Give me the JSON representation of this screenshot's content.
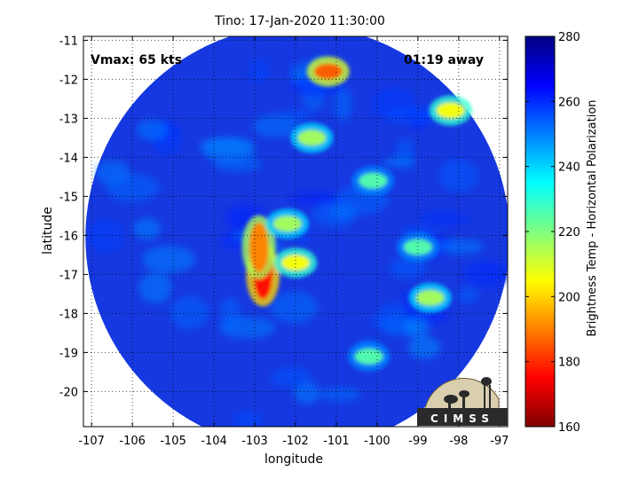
{
  "chart_data": {
    "type": "heatmap",
    "title": "Tino: 17-Jan-2020 11:30:00",
    "xlabel": "longitude",
    "ylabel": "latitude",
    "xlim": [
      -107.2,
      -96.8
    ],
    "ylim": [
      -20.9,
      -10.9
    ],
    "xticks": [
      -107,
      -106,
      -105,
      -104,
      -103,
      -102,
      -101,
      -100,
      -99,
      -98,
      -97
    ],
    "yticks": [
      -11,
      -12,
      -13,
      -14,
      -15,
      -16,
      -17,
      -18,
      -19,
      -20
    ],
    "grid": "dotted",
    "annotations": {
      "vmax": "Vmax: 65 kts",
      "time_away": "01:19 away"
    },
    "colorbar": {
      "label": "Brightness Temp - Horizontal Polarization",
      "range": [
        160,
        280
      ],
      "ticks": [
        160,
        180,
        200,
        220,
        240,
        260,
        280
      ],
      "colormap": "jet"
    },
    "swath": {
      "center_lon": -101.95,
      "center_lat": -16.05,
      "radius_deg": 5.2
    },
    "features": [
      {
        "label": "eyewall_west",
        "lon": -102.8,
        "lat": -17.0,
        "tb": 175
      },
      {
        "label": "eyewall_northwest",
        "lon": -102.9,
        "lat": -16.3,
        "tb": 190
      },
      {
        "label": "inner_band_north",
        "lon": -102.2,
        "lat": -15.7,
        "tb": 215
      },
      {
        "label": "eye_cell",
        "lon": -102.0,
        "lat": -16.7,
        "tb": 205
      },
      {
        "label": "outer_band_north",
        "lon": -101.6,
        "lat": -13.5,
        "tb": 215
      },
      {
        "label": "band_northeast",
        "lon": -100.1,
        "lat": -14.6,
        "tb": 225
      },
      {
        "label": "band_east",
        "lon": -99.0,
        "lat": -16.3,
        "tb": 225
      },
      {
        "label": "band_southeast",
        "lon": -98.7,
        "lat": -17.6,
        "tb": 215
      },
      {
        "label": "band_south",
        "lon": -100.2,
        "lat": -19.1,
        "tb": 225
      },
      {
        "label": "top_cell",
        "lon": -101.2,
        "lat": -11.8,
        "tb": 185
      },
      {
        "label": "northeast_cell",
        "lon": -98.2,
        "lat": -12.8,
        "tb": 205
      }
    ]
  },
  "logo": {
    "text": "CIMSS"
  },
  "colors": {
    "swath_base": "#1538e0",
    "background": "#ffffff",
    "axes": "#000000"
  }
}
